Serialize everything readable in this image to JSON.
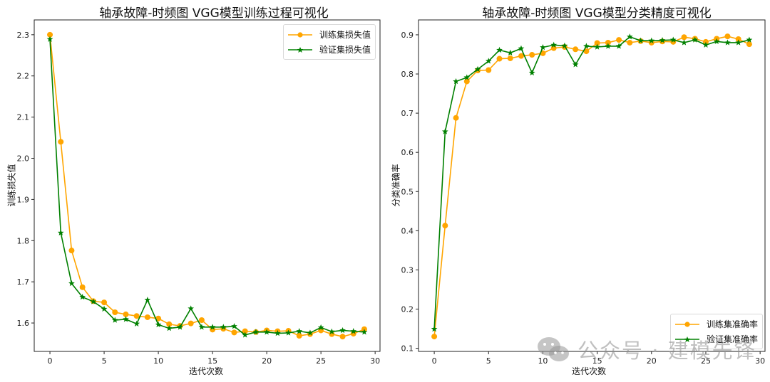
{
  "charts": [
    {
      "title": "轴承故障-时频图 VGG模型训练过程可视化",
      "xlabel": "迭代次数",
      "ylabel": "训练损失值",
      "legend": [
        "训练集损失值",
        "验证集损失值"
      ],
      "xticks": [
        "0",
        "5",
        "10",
        "15",
        "20",
        "25",
        "30"
      ],
      "yticks": [
        "1.6",
        "1.7",
        "1.8",
        "1.9",
        "2.0",
        "2.1",
        "2.2",
        "2.3"
      ]
    },
    {
      "title": "轴承故障-时频图 VGG模型分类精度可视化",
      "xlabel": "迭代次数",
      "ylabel": "分类准确率",
      "legend": [
        "训练集准确率",
        "验证集准确率"
      ],
      "xticks": [
        "0",
        "5",
        "10",
        "15",
        "20",
        "25",
        "30"
      ],
      "yticks": [
        "0.1",
        "0.2",
        "0.3",
        "0.4",
        "0.5",
        "0.6",
        "0.7",
        "0.8",
        "0.9"
      ]
    }
  ],
  "watermark": "公众号 · 建模先锋",
  "colors": {
    "train": "#FFA500",
    "val": "#008000"
  },
  "chart_data": [
    {
      "type": "line",
      "title": "轴承故障-时频图 VGG模型训练过程可视化",
      "xlabel": "迭代次数",
      "ylabel": "训练损失值",
      "x": [
        0,
        1,
        2,
        3,
        4,
        5,
        6,
        7,
        8,
        9,
        10,
        11,
        12,
        13,
        14,
        15,
        16,
        17,
        18,
        19,
        20,
        21,
        22,
        23,
        24,
        25,
        26,
        27,
        28,
        29
      ],
      "series": [
        {
          "name": "训练集损失值",
          "color": "#FFA500",
          "marker": "o",
          "values": [
            2.3,
            2.04,
            1.776,
            1.687,
            1.653,
            1.65,
            1.626,
            1.621,
            1.617,
            1.614,
            1.611,
            1.597,
            1.593,
            1.599,
            1.607,
            1.584,
            1.586,
            1.577,
            1.58,
            1.578,
            1.582,
            1.58,
            1.581,
            1.569,
            1.573,
            1.582,
            1.573,
            1.567,
            1.574,
            1.585
          ]
        },
        {
          "name": "验证集损失值",
          "color": "#008000",
          "marker": "*",
          "values": [
            2.289,
            1.819,
            1.696,
            1.663,
            1.652,
            1.634,
            1.607,
            1.609,
            1.598,
            1.656,
            1.596,
            1.587,
            1.59,
            1.635,
            1.59,
            1.59,
            1.59,
            1.592,
            1.571,
            1.578,
            1.578,
            1.575,
            1.576,
            1.58,
            1.576,
            1.589,
            1.579,
            1.582,
            1.58,
            1.578
          ]
        }
      ],
      "xlim": [
        -1.45,
        30.45
      ],
      "ylim": [
        1.531,
        2.336
      ],
      "legend_position": "upper right",
      "grid": false
    },
    {
      "type": "line",
      "title": "轴承故障-时频图 VGG模型分类精度可视化",
      "xlabel": "迭代次数",
      "ylabel": "分类准确率",
      "x": [
        0,
        1,
        2,
        3,
        4,
        5,
        6,
        7,
        8,
        9,
        10,
        11,
        12,
        13,
        14,
        15,
        16,
        17,
        18,
        19,
        20,
        21,
        22,
        23,
        24,
        25,
        26,
        27,
        28,
        29
      ],
      "series": [
        {
          "name": "训练集准确率",
          "color": "#FFA500",
          "marker": "o",
          "values": [
            0.13,
            0.413,
            0.688,
            0.781,
            0.809,
            0.81,
            0.839,
            0.84,
            0.846,
            0.849,
            0.853,
            0.866,
            0.869,
            0.863,
            0.858,
            0.879,
            0.88,
            0.887,
            0.88,
            0.884,
            0.88,
            0.883,
            0.882,
            0.894,
            0.89,
            0.882,
            0.89,
            0.896,
            0.889,
            0.876
          ]
        },
        {
          "name": "验证集准确率",
          "color": "#008000",
          "marker": "*",
          "values": [
            0.149,
            0.653,
            0.781,
            0.791,
            0.812,
            0.833,
            0.861,
            0.854,
            0.865,
            0.803,
            0.868,
            0.874,
            0.872,
            0.824,
            0.871,
            0.869,
            0.871,
            0.871,
            0.895,
            0.885,
            0.885,
            0.886,
            0.887,
            0.88,
            0.887,
            0.874,
            0.883,
            0.88,
            0.88,
            0.887
          ]
        }
      ],
      "xlim": [
        -1.45,
        30.45
      ],
      "ylim": [
        0.092,
        0.938
      ],
      "legend_position": "lower right",
      "grid": false
    }
  ]
}
